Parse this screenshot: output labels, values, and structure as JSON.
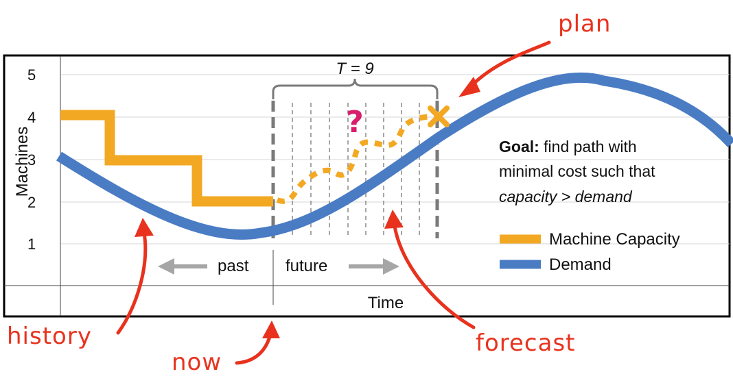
{
  "y_axis": {
    "title": "Machines",
    "ticks": [
      "1",
      "2",
      "3",
      "4",
      "5"
    ]
  },
  "x_axis": {
    "title": "Time"
  },
  "timeline": {
    "past_label": "past",
    "future_label": "future"
  },
  "horizon_label": "T = 9",
  "question_mark": "?",
  "goal": {
    "bold": "Goal:",
    "line1_rest": " find path with",
    "line2": "minimal cost such that",
    "line3": "capacity > demand"
  },
  "legend": {
    "capacity": "Machine Capacity",
    "demand": "Demand"
  },
  "annotations": {
    "plan": "plan",
    "history": "history",
    "now": "now",
    "forecast": "forecast"
  },
  "colors": {
    "capacity": "#f3a823",
    "demand": "#4a7cc4",
    "annotation": "#e8321e",
    "question": "#d91d6c"
  }
}
